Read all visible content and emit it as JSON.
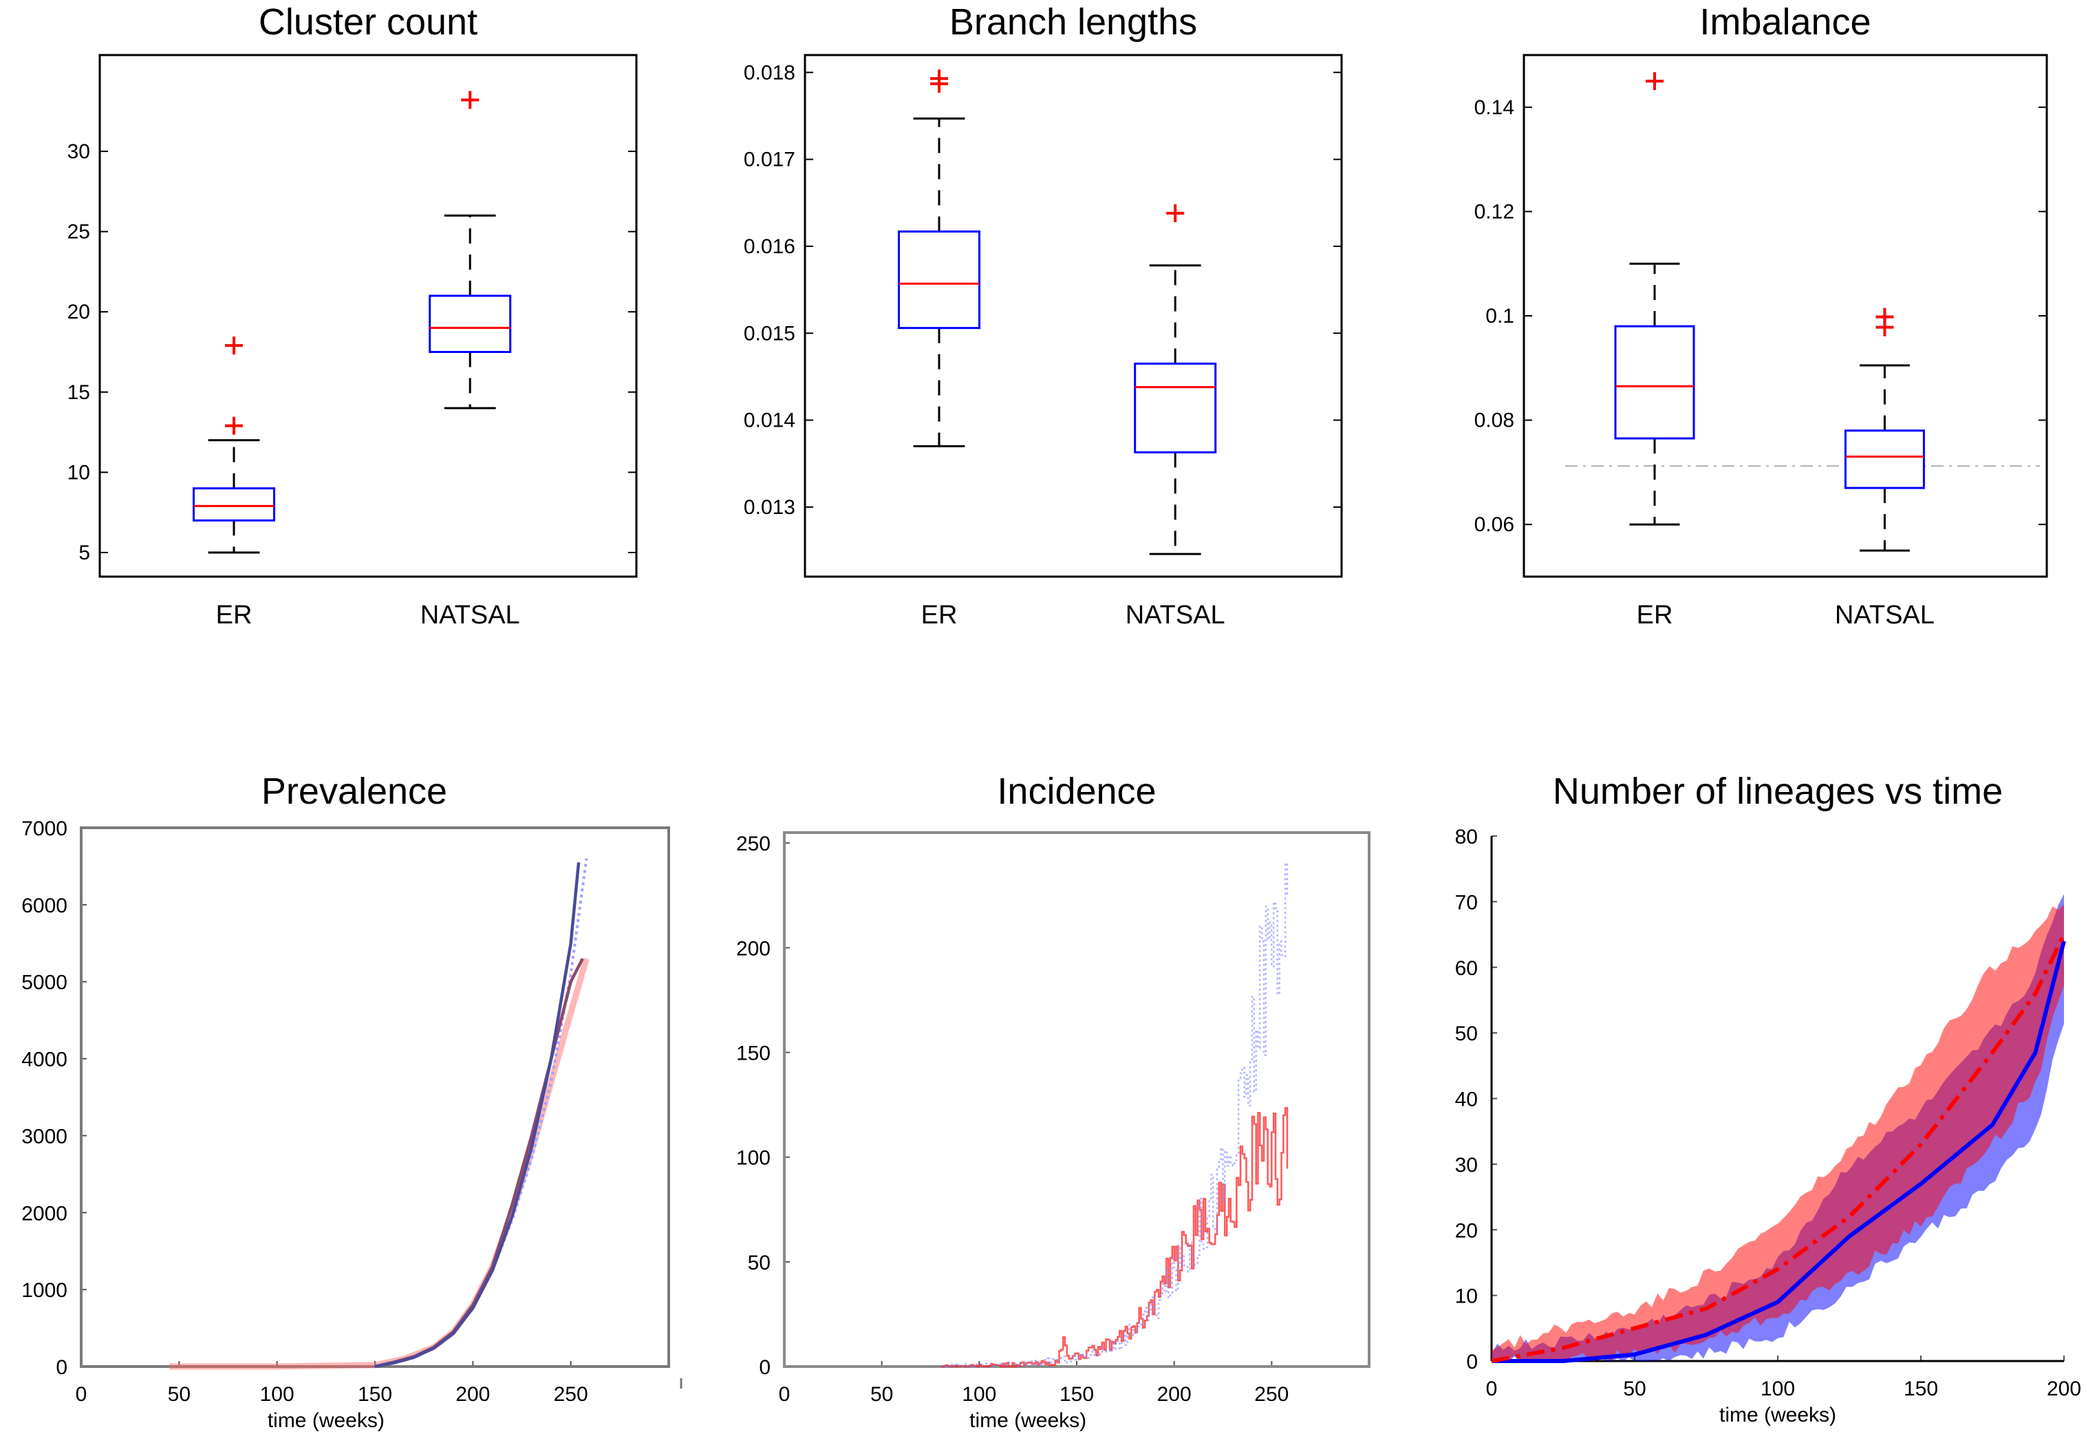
{
  "chart_data": [
    {
      "type": "boxplot",
      "title": "Cluster count",
      "categories": [
        "ER",
        "NATSAL"
      ],
      "ylim": [
        3.5,
        36
      ],
      "yticks": [
        5,
        10,
        15,
        20,
        25,
        30
      ],
      "boxes": [
        {
          "category": "ER",
          "whisker_low": 5,
          "q1": 7,
          "median": 7.9,
          "q3": 9,
          "whisker_high": 12,
          "outliers": [
            12.9,
            17.9
          ]
        },
        {
          "category": "NATSAL",
          "whisker_low": 14,
          "q1": 17.5,
          "median": 19,
          "q3": 21,
          "whisker_high": 26,
          "outliers": [
            33.2
          ]
        }
      ],
      "colors": {
        "box": "#0000ff",
        "median": "#ff0000",
        "whisker": "#000000",
        "outlier": "#ff0000"
      }
    },
    {
      "type": "boxplot",
      "title": "Branch lengths",
      "categories": [
        "ER",
        "NATSAL"
      ],
      "ylim": [
        0.0122,
        0.0182
      ],
      "yticks": [
        "0.013",
        "0.014",
        "0.015",
        "0.016",
        "0.017",
        "0.018"
      ],
      "boxes": [
        {
          "category": "ER",
          "whisker_low": 0.0137,
          "q1": 0.01506,
          "median": 0.01557,
          "q3": 0.01617,
          "whisker_high": 0.01747,
          "outliers": [
            0.01787,
            0.01793
          ]
        },
        {
          "category": "NATSAL",
          "whisker_low": 0.01246,
          "q1": 0.01363,
          "median": 0.01438,
          "q3": 0.01465,
          "whisker_high": 0.01578,
          "outliers": [
            0.01638
          ]
        }
      ],
      "colors": {
        "box": "#0000ff",
        "median": "#ff0000",
        "whisker": "#000000",
        "outlier": "#ff0000"
      }
    },
    {
      "type": "boxplot",
      "title": "Imbalance",
      "categories": [
        "ER",
        "NATSAL"
      ],
      "ylim": [
        0.05,
        0.15
      ],
      "yticks": [
        "0.06",
        "0.08",
        "0.1",
        "0.12",
        "0.14"
      ],
      "reference_line": 0.0712,
      "boxes": [
        {
          "category": "ER",
          "whisker_low": 0.06,
          "q1": 0.0765,
          "median": 0.0865,
          "q3": 0.098,
          "whisker_high": 0.11,
          "outliers": [
            0.145
          ]
        },
        {
          "category": "NATSAL",
          "whisker_low": 0.055,
          "q1": 0.067,
          "median": 0.073,
          "q3": 0.078,
          "whisker_high": 0.0905,
          "outliers": [
            0.0978,
            0.0998
          ]
        }
      ],
      "colors": {
        "box": "#0000ff",
        "median": "#ff0000",
        "whisker": "#000000",
        "outlier": "#ff0000"
      }
    },
    {
      "type": "line",
      "title": "Prevalence",
      "xlabel": "time (weeks)",
      "xlim": [
        0,
        300
      ],
      "ylim": [
        0,
        7000
      ],
      "xticks": [
        0,
        50,
        100,
        150,
        200,
        250
      ],
      "yticks": [
        0,
        1000,
        2000,
        3000,
        4000,
        5000,
        6000,
        7000
      ],
      "series": [
        {
          "color": "#ff6060",
          "style": "solid-light",
          "x": [
            45,
            100,
            150,
            165,
            180,
            190,
            200,
            210,
            220,
            230,
            240,
            250,
            258
          ],
          "y": [
            0,
            0,
            20,
            100,
            250,
            450,
            800,
            1300,
            2000,
            2800,
            3700,
            4600,
            5300
          ]
        },
        {
          "color": "#a0a0ff",
          "style": "dotted",
          "x": [
            150,
            165,
            180,
            190,
            200,
            210,
            220,
            230,
            240,
            250,
            258
          ],
          "y": [
            10,
            90,
            240,
            440,
            780,
            1250,
            1900,
            2700,
            3700,
            5100,
            6600
          ]
        },
        {
          "color": "#8b4a6a",
          "style": "solid",
          "x": [
            150,
            160,
            170,
            180,
            190,
            200,
            210,
            220,
            230,
            240,
            250,
            256
          ],
          "y": [
            0,
            60,
            130,
            250,
            450,
            800,
            1300,
            2100,
            3000,
            4000,
            5000,
            5300
          ]
        },
        {
          "color": "#4a4a9a",
          "style": "solid",
          "x": [
            150,
            160,
            170,
            180,
            190,
            200,
            210,
            220,
            230,
            240,
            250,
            254
          ],
          "y": [
            0,
            50,
            120,
            240,
            430,
            760,
            1250,
            1950,
            2850,
            4000,
            5500,
            6550
          ]
        }
      ]
    },
    {
      "type": "line",
      "title": "Incidence",
      "xlabel": "time (weeks)",
      "xlim": [
        0,
        300
      ],
      "ylim": [
        0,
        255
      ],
      "xticks": [
        0,
        50,
        100,
        150,
        200,
        250
      ],
      "yticks": [
        0,
        50,
        100,
        150,
        200,
        250
      ],
      "series": [
        {
          "color": "#ff2020",
          "style": "noisy",
          "x": [
            80,
            100,
            120,
            140,
            143,
            146,
            150,
            160,
            170,
            180,
            190,
            200,
            210,
            220,
            230,
            240,
            250,
            258
          ],
          "y": [
            0,
            0,
            1,
            2,
            12,
            4,
            5,
            8,
            12,
            20,
            32,
            48,
            62,
            72,
            82,
            100,
            98,
            105
          ]
        },
        {
          "color": "#8080ff",
          "style": "dotted-noisy",
          "x": [
            80,
            120,
            150,
            170,
            190,
            210,
            230,
            240,
            245,
            250,
            255,
            258
          ],
          "y": [
            0,
            1,
            4,
            10,
            28,
            60,
            100,
            150,
            190,
            200,
            230,
            190
          ]
        }
      ]
    },
    {
      "type": "area",
      "title": "Number of lineages vs time",
      "xlabel": "time (weeks)",
      "xlim": [
        0,
        200
      ],
      "ylim": [
        0,
        80
      ],
      "xticks": [
        0,
        50,
        100,
        150,
        200
      ],
      "yticks": [
        0,
        10,
        20,
        30,
        40,
        50,
        60,
        70,
        80
      ],
      "series": [
        {
          "color": "#0000ff",
          "style": "solid",
          "x": [
            0,
            25,
            50,
            75,
            100,
            125,
            150,
            175,
            190,
            200
          ],
          "y": [
            0,
            0,
            1,
            4,
            9,
            19,
            27,
            36,
            47,
            64
          ],
          "band_low": [
            0,
            0,
            0,
            1,
            4,
            11,
            19,
            27,
            35,
            52
          ],
          "band_high": [
            2,
            3,
            5,
            9,
            15,
            30,
            38,
            50,
            59,
            72
          ]
        },
        {
          "color": "#ff0000",
          "style": "dashdot",
          "x": [
            0,
            25,
            50,
            75,
            100,
            125,
            150,
            175,
            190,
            200
          ],
          "y": [
            0,
            2,
            5,
            8,
            14,
            22,
            33,
            47,
            56,
            65
          ],
          "band_low": [
            0,
            0,
            1,
            3,
            7,
            13,
            21,
            33,
            42,
            58
          ],
          "band_high": [
            2,
            5,
            8,
            13,
            21,
            32,
            45,
            60,
            66,
            70
          ]
        }
      ]
    }
  ]
}
